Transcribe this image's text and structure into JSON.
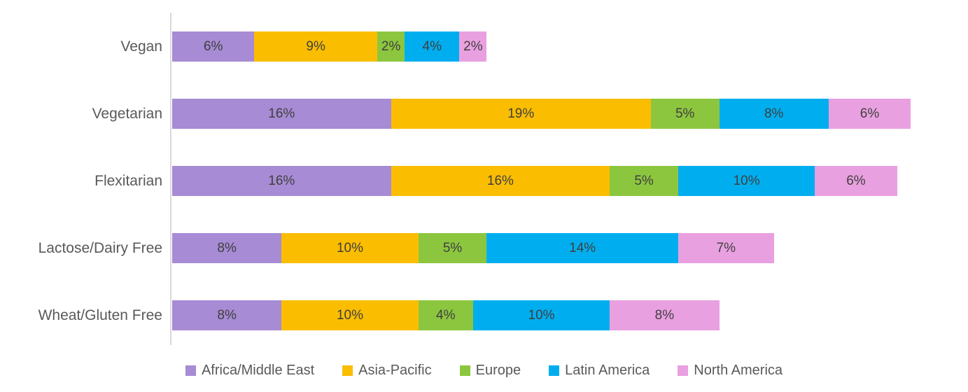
{
  "chart_data": {
    "type": "bar",
    "orientation": "horizontal",
    "stacked": true,
    "title": "",
    "xlabel": "",
    "ylabel": "",
    "grid": false,
    "legend_position": "bottom",
    "data_label_suffix": "%",
    "xlim": [
      0,
      58
    ],
    "categories": [
      "Vegan",
      "Vegetarian",
      "Flexitarian",
      "Lactose/Dairy Free",
      "Wheat/Gluten Free"
    ],
    "series": [
      {
        "name": "Africa/Middle East",
        "color": "#A78BD4",
        "values": [
          6,
          16,
          16,
          8,
          8
        ]
      },
      {
        "name": "Asia-Pacific",
        "color": "#FABD00",
        "values": [
          9,
          19,
          16,
          10,
          10
        ]
      },
      {
        "name": "Europe",
        "color": "#8CC63F",
        "values": [
          2,
          5,
          5,
          5,
          4
        ]
      },
      {
        "name": "Latin America",
        "color": "#00AEEF",
        "values": [
          4,
          8,
          10,
          14,
          10
        ]
      },
      {
        "name": "North America",
        "color": "#E9A0E0",
        "values": [
          2,
          6,
          6,
          7,
          8
        ]
      }
    ]
  },
  "colors": {
    "background": "#FFFFFF",
    "axis_line": "#D9D9D9",
    "category_label": "#595959",
    "data_label": "#3F3F3F",
    "legend_label": "#595959"
  }
}
